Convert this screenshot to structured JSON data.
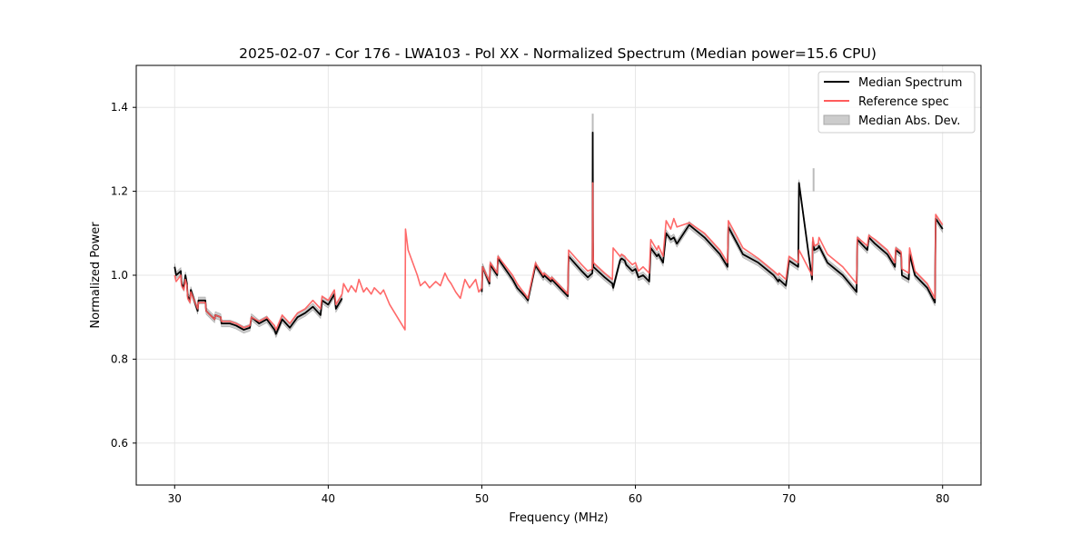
{
  "chart_data": {
    "type": "line",
    "title": "2025-02-07 - Cor 176 - LWA103 - Pol XX - Normalized Spectrum (Median power=15.6 CPU)",
    "xlabel": "Frequency (MHz)",
    "ylabel": "Normalized Power",
    "xlim": [
      27.5,
      82.5
    ],
    "ylim": [
      0.5,
      1.5
    ],
    "xticks": [
      30,
      40,
      50,
      60,
      70,
      80
    ],
    "yticks": [
      0.6,
      0.8,
      1.0,
      1.2,
      1.4
    ],
    "xtick_labels": [
      "30",
      "40",
      "50",
      "60",
      "70",
      "80"
    ],
    "ytick_labels": [
      "0.6",
      "0.8",
      "1.0",
      "1.2",
      "1.4"
    ],
    "grid": true,
    "legend_position": "top-right",
    "series": [
      {
        "name": "Median Spectrum",
        "color": "#000000",
        "segments": [
          {
            "x": [
              30.0,
              30.1,
              30.4,
              30.45,
              30.6,
              30.7,
              30.8,
              30.85,
              31.0,
              31.05,
              31.5,
              31.55,
              32.0,
              32.05,
              32.6,
              32.65,
              33.0,
              33.05,
              33.6,
              34.0,
              34.5,
              34.9,
              35.0,
              35.5,
              36.0,
              36.5,
              36.6,
              37.0,
              37.5,
              38.0,
              38.5,
              39.0,
              39.5,
              39.6,
              40.0,
              40.4,
              40.5,
              40.9
            ],
            "y": [
              1.02,
              1.0,
              1.01,
              0.98,
              0.97,
              1.0,
              0.98,
              0.95,
              0.94,
              0.965,
              0.915,
              0.94,
              0.94,
              0.915,
              0.895,
              0.905,
              0.9,
              0.885,
              0.885,
              0.88,
              0.87,
              0.875,
              0.9,
              0.885,
              0.895,
              0.87,
              0.86,
              0.895,
              0.875,
              0.9,
              0.91,
              0.925,
              0.905,
              0.94,
              0.93,
              0.955,
              0.92,
              0.945
            ]
          },
          {
            "x": [
              50.0,
              50.05,
              50.5,
              50.55,
              51.0,
              51.05,
              52.0,
              52.3,
              52.8,
              53.0,
              53.5,
              53.55,
              54.0,
              54.05,
              54.5,
              54.55,
              55.6,
              55.65,
              56.5,
              56.9,
              57.2,
              57.22,
              57.24,
              57.26,
              58.0,
              58.5,
              58.55,
              59.0,
              59.1,
              59.3,
              59.4,
              59.8,
              60.0,
              60.2,
              60.5,
              60.9,
              61.0,
              61.4,
              61.5,
              61.8,
              62.0,
              62.3,
              62.5,
              62.7,
              63.5,
              64.5,
              65.5,
              66.0,
              66.05,
              67.0,
              68.0,
              69.0,
              69.3,
              69.35,
              69.8,
              70.0,
              70.6,
              70.65,
              71.5,
              71.55,
              71.6,
              71.65,
              71.9,
              71.95,
              72.5,
              73.5,
              74.4,
              74.45,
              75.1,
              75.2,
              75.6,
              76.4,
              76.9,
              76.95,
              77.3,
              77.35,
              77.8,
              77.85,
              78.2,
              79.0,
              79.5,
              79.55,
              80.0
            ],
            "y": [
              0.96,
              1.02,
              0.98,
              1.025,
              1.0,
              1.04,
              0.99,
              0.97,
              0.95,
              0.94,
              1.025,
              1.02,
              0.995,
              1.0,
              0.985,
              0.99,
              0.95,
              1.045,
              1.01,
              0.995,
              1.005,
              1.34,
              1.08,
              1.02,
              0.995,
              0.98,
              0.97,
              1.035,
              1.04,
              1.035,
              1.025,
              1.01,
              1.015,
              0.995,
              1.0,
              0.985,
              1.065,
              1.045,
              1.05,
              1.03,
              1.1,
              1.085,
              1.09,
              1.075,
              1.12,
              1.09,
              1.05,
              1.02,
              1.115,
              1.05,
              1.03,
              1.0,
              0.985,
              0.99,
              0.975,
              1.035,
              1.02,
              1.22,
              0.99,
              1.08,
              1.07,
              1.06,
              1.065,
              1.07,
              1.03,
              1.0,
              0.96,
              1.085,
              1.06,
              1.09,
              1.075,
              1.05,
              1.02,
              1.06,
              1.05,
              1.0,
              0.99,
              1.05,
              1.0,
              0.97,
              0.935,
              1.135,
              1.11
            ]
          }
        ]
      },
      {
        "name": "Reference spec",
        "color": "#ff5c5c",
        "x": [
          30.0,
          30.1,
          30.4,
          30.45,
          30.6,
          30.7,
          30.8,
          30.85,
          31.0,
          31.05,
          31.5,
          31.55,
          32.0,
          32.05,
          32.6,
          32.65,
          33.0,
          33.05,
          33.6,
          34.0,
          34.5,
          34.9,
          35.0,
          35.5,
          36.0,
          36.5,
          36.6,
          37.0,
          37.5,
          38.0,
          38.5,
          39.0,
          39.5,
          39.6,
          40.0,
          40.4,
          40.5,
          40.9,
          41.0,
          41.3,
          41.5,
          41.8,
          42.0,
          42.3,
          42.5,
          42.8,
          43.0,
          43.4,
          43.6,
          44.0,
          44.5,
          45.0,
          45.03,
          45.2,
          45.5,
          45.8,
          46.0,
          46.3,
          46.6,
          47.0,
          47.3,
          47.6,
          47.8,
          48.0,
          48.3,
          48.6,
          48.9,
          49.2,
          49.6,
          49.8,
          50.0,
          50.05,
          50.5,
          50.55,
          51.0,
          51.05,
          52.0,
          52.3,
          52.8,
          53.0,
          53.5,
          53.55,
          54.0,
          54.05,
          54.5,
          54.55,
          55.6,
          55.65,
          56.5,
          56.9,
          57.2,
          57.22,
          57.24,
          57.26,
          58.0,
          58.5,
          58.55,
          59.0,
          59.1,
          59.3,
          59.4,
          59.8,
          60.0,
          60.2,
          60.5,
          60.9,
          61.0,
          61.4,
          61.5,
          61.8,
          62.0,
          62.3,
          62.5,
          62.7,
          63.5,
          64.5,
          65.5,
          66.0,
          66.05,
          67.0,
          68.0,
          69.0,
          69.3,
          69.35,
          69.8,
          70.0,
          70.6,
          70.65,
          71.5,
          71.55,
          71.6,
          71.65,
          71.9,
          71.95,
          72.5,
          73.5,
          74.4,
          74.45,
          75.1,
          75.2,
          75.6,
          76.4,
          76.9,
          76.95,
          77.3,
          77.35,
          77.8,
          77.85,
          78.2,
          79.0,
          79.5,
          79.55,
          80.0
        ],
        "y": [
          1.0,
          0.985,
          1.0,
          0.975,
          0.965,
          0.99,
          0.975,
          0.945,
          0.935,
          0.96,
          0.92,
          0.935,
          0.935,
          0.915,
          0.895,
          0.905,
          0.9,
          0.89,
          0.89,
          0.885,
          0.875,
          0.88,
          0.9,
          0.89,
          0.9,
          0.88,
          0.87,
          0.905,
          0.885,
          0.91,
          0.92,
          0.94,
          0.92,
          0.95,
          0.94,
          0.965,
          0.93,
          0.955,
          0.98,
          0.96,
          0.975,
          0.96,
          0.99,
          0.96,
          0.97,
          0.955,
          0.97,
          0.955,
          0.965,
          0.93,
          0.9,
          0.87,
          1.11,
          1.06,
          1.03,
          1.0,
          0.975,
          0.985,
          0.97,
          0.985,
          0.975,
          1.005,
          0.99,
          0.98,
          0.96,
          0.945,
          0.99,
          0.97,
          0.99,
          0.96,
          0.97,
          1.02,
          0.985,
          1.03,
          1.005,
          1.045,
          1.0,
          0.98,
          0.955,
          0.945,
          1.03,
          1.025,
          1.0,
          1.005,
          0.99,
          0.995,
          0.955,
          1.06,
          1.025,
          1.01,
          1.015,
          1.22,
          1.08,
          1.03,
          1.005,
          0.99,
          1.065,
          1.045,
          1.05,
          1.045,
          1.04,
          1.025,
          1.03,
          1.01,
          1.02,
          1.005,
          1.085,
          1.06,
          1.07,
          1.045,
          1.13,
          1.11,
          1.135,
          1.115,
          1.125,
          1.1,
          1.06,
          1.03,
          1.13,
          1.065,
          1.04,
          1.01,
          1.0,
          1.005,
          0.99,
          1.045,
          1.03,
          1.06,
          1.0,
          1.09,
          1.08,
          1.07,
          1.075,
          1.09,
          1.05,
          1.02,
          0.98,
          1.09,
          1.07,
          1.095,
          1.085,
          1.06,
          1.03,
          1.065,
          1.055,
          1.015,
          1.005,
          1.065,
          1.01,
          0.98,
          0.945,
          1.145,
          1.12
        ]
      },
      {
        "name": "Median Abs. Dev.",
        "color": "#aaaaaa",
        "spikes": [
          {
            "x": 57.22,
            "y_low": 1.22,
            "y_high": 1.385
          },
          {
            "x": 71.6,
            "y_low": 1.2,
            "y_high": 1.255
          }
        ]
      }
    ],
    "legend": [
      "Median Spectrum",
      "Reference spec",
      "Median Abs. Dev."
    ]
  }
}
